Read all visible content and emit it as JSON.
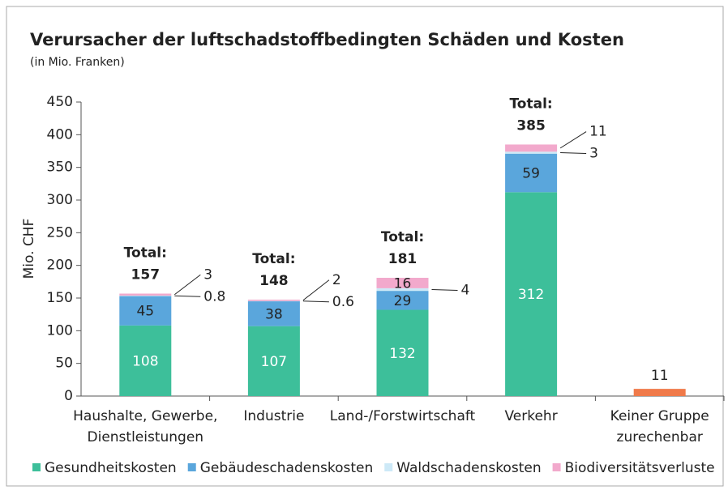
{
  "chart_data": {
    "type": "bar",
    "stacked": true,
    "title": "Verursacher der luftschadstoffbedingten Schäden und Kosten",
    "subtitle": "(in Mio. Franken)",
    "y_label": "Mio. CHF",
    "categories": [
      [
        "Haushalte, Gewerbe,",
        "Dienstleistungen"
      ],
      [
        "Industrie"
      ],
      [
        "Land-/Forstwirtschaft"
      ],
      [
        "Verkehr"
      ],
      [
        "Keiner Gruppe",
        "zurechenbar"
      ]
    ],
    "series": [
      {
        "name": "Gesundheitskosten",
        "color": "#3dbf9a",
        "values": [
          108,
          107,
          132,
          312,
          null
        ]
      },
      {
        "name": "Gebäudeschadenskosten",
        "color": "#5aa6dc",
        "values": [
          45,
          38,
          29,
          59,
          null
        ]
      },
      {
        "name": "Waldschadenskosten",
        "color": "#cde9f7",
        "values": [
          0.8,
          0.6,
          4,
          3,
          null
        ]
      },
      {
        "name": "Biodiversitätsverluste",
        "color": "#f2a9cc",
        "values": [
          3,
          2,
          16,
          11,
          null
        ]
      },
      {
        "color": "#f07a4a",
        "values": [
          null,
          null,
          null,
          null,
          11
        ]
      }
    ],
    "total_label": "Total:",
    "totals": [
      157,
      148,
      181,
      385,
      null
    ],
    "ylim": [
      0,
      450
    ],
    "yticks": [
      0,
      50,
      100,
      150,
      200,
      250,
      300,
      350,
      400,
      450
    ],
    "legend": "bottom"
  }
}
